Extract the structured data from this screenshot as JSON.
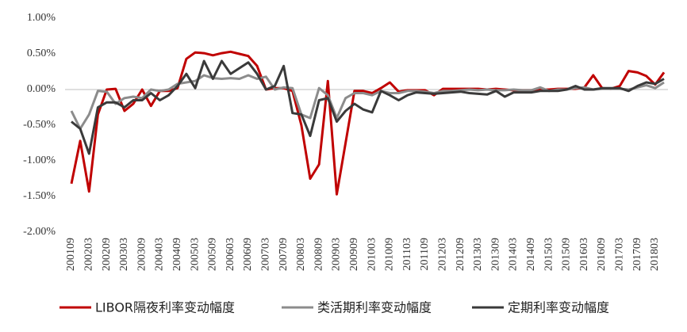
{
  "chart_data": {
    "type": "line",
    "categories": [
      "200109",
      null,
      "200203",
      null,
      "200209",
      null,
      "200303",
      null,
      "200309",
      null,
      "200403",
      null,
      "200409",
      null,
      "200503",
      null,
      "200509",
      null,
      "200603",
      null,
      "200609",
      null,
      "200703",
      null,
      "200709",
      null,
      "200803",
      null,
      "200809",
      null,
      "200903",
      null,
      "200909",
      null,
      "201003",
      null,
      "201009",
      null,
      "201103",
      null,
      "201109",
      null,
      "201203",
      null,
      "201209",
      null,
      "201303",
      null,
      "201309",
      null,
      "201403",
      null,
      "201409",
      null,
      "201503",
      null,
      "201509",
      null,
      "201603",
      null,
      "201609",
      null,
      "201703",
      null,
      "201709",
      null,
      "201803",
      null
    ],
    "series": [
      {
        "name": "LIBOR隔夜利率变动幅度",
        "color": "#c00000",
        "values": [
          -1.32,
          -0.72,
          -1.43,
          -0.35,
          0.0,
          0.01,
          -0.3,
          -0.2,
          0.0,
          -0.23,
          -0.02,
          -0.02,
          0.02,
          0.43,
          0.52,
          0.51,
          0.48,
          0.51,
          0.53,
          0.5,
          0.47,
          0.33,
          0.0,
          0.02,
          0.02,
          -0.02,
          -0.5,
          -1.25,
          -1.05,
          0.12,
          -1.47,
          -0.75,
          -0.02,
          -0.02,
          -0.05,
          0.02,
          0.1,
          -0.03,
          -0.01,
          -0.01,
          -0.01,
          -0.08,
          0.01,
          0.01,
          0.01,
          0.01,
          0.01,
          0.0,
          0.01,
          0.0,
          -0.01,
          -0.01,
          -0.01,
          0.0,
          0.0,
          0.01,
          0.01,
          0.01,
          0.03,
          0.2,
          0.02,
          0.01,
          0.05,
          0.26,
          0.24,
          0.19,
          0.07,
          0.24
        ]
      },
      {
        "name": "类活期利率变动幅度",
        "color": "#8c8c8c",
        "values": [
          -0.3,
          -0.55,
          -0.35,
          -0.02,
          -0.03,
          -0.2,
          -0.12,
          -0.1,
          -0.12,
          0.0,
          -0.02,
          0.0,
          0.08,
          0.1,
          0.12,
          0.2,
          0.16,
          0.15,
          0.16,
          0.15,
          0.2,
          0.15,
          0.18,
          0.0,
          0.03,
          0.02,
          -0.35,
          -0.4,
          0.02,
          -0.08,
          -0.4,
          -0.12,
          -0.05,
          -0.05,
          -0.08,
          -0.02,
          -0.05,
          -0.05,
          -0.02,
          -0.02,
          -0.03,
          -0.05,
          -0.02,
          -0.02,
          -0.01,
          0.0,
          -0.01,
          0.0,
          -0.01,
          -0.01,
          0.0,
          -0.01,
          -0.01,
          0.03,
          -0.02,
          0.0,
          0.0,
          0.02,
          0.03,
          0.0,
          0.01,
          0.01,
          0.01,
          0.0,
          0.03,
          0.06,
          0.02,
          0.1
        ]
      },
      {
        "name": "定期利率变动幅度",
        "color": "#3a3a3a",
        "values": [
          -0.45,
          -0.55,
          -0.9,
          -0.25,
          -0.18,
          -0.18,
          -0.25,
          -0.15,
          -0.15,
          -0.05,
          -0.15,
          -0.08,
          0.05,
          0.22,
          0.02,
          0.4,
          0.15,
          0.4,
          0.22,
          0.3,
          0.38,
          0.22,
          0.0,
          0.05,
          0.33,
          -0.33,
          -0.35,
          -0.65,
          -0.15,
          -0.12,
          -0.45,
          -0.3,
          -0.2,
          -0.28,
          -0.32,
          -0.02,
          -0.08,
          -0.15,
          -0.08,
          -0.04,
          -0.05,
          -0.06,
          -0.05,
          -0.04,
          -0.03,
          -0.05,
          -0.06,
          -0.07,
          -0.02,
          -0.1,
          -0.04,
          -0.04,
          -0.04,
          -0.02,
          -0.02,
          -0.02,
          0.0,
          0.05,
          0.0,
          0.0,
          0.02,
          0.02,
          0.02,
          -0.02,
          0.05,
          0.1,
          0.08,
          0.15
        ]
      }
    ],
    "ylim": [
      -2,
      1
    ],
    "yticks": [
      {
        "value": -2,
        "label": "-2.00%"
      },
      {
        "value": -1.5,
        "label": "-1.50%"
      },
      {
        "value": -1,
        "label": "-1.00%"
      },
      {
        "value": -0.5,
        "label": "-0.50%"
      },
      {
        "value": 0,
        "label": "0.00%"
      },
      {
        "value": 0.5,
        "label": "0.50%"
      },
      {
        "value": 1,
        "label": "1.00%"
      }
    ],
    "zero_line": true,
    "legend": "bottom"
  }
}
